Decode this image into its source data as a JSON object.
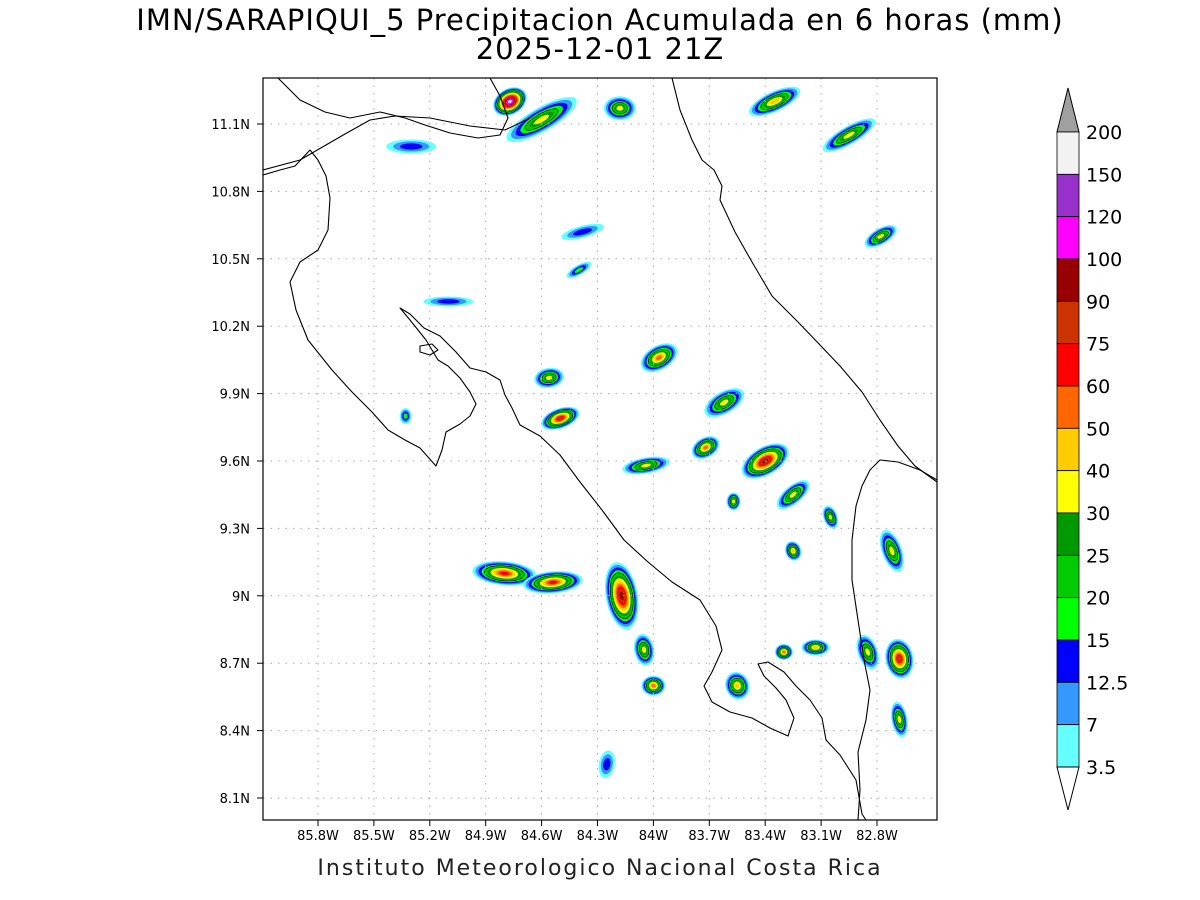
{
  "title_line1": "IMN/SARAPIQUI_5 Precipitacion Acumulada en 6 horas (mm)",
  "title_line2": "2025-12-01 21Z",
  "footer": "Instituto Meteorologico Nacional Costa Rica",
  "lon_labels": [
    "85.8W",
    "85.5W",
    "85.2W",
    "84.9W",
    "84.6W",
    "84.3W",
    "84W",
    "83.7W",
    "83.4W",
    "83.1W",
    "82.8W"
  ],
  "lat_labels": [
    "11.1N",
    "10.8N",
    "10.5N",
    "10.2N",
    "9.9N",
    "9.6N",
    "9.3N",
    "9N",
    "8.7N",
    "8.4N",
    "8.1N"
  ],
  "colorbar": {
    "labels": [
      "200",
      "150",
      "120",
      "100",
      "90",
      "75",
      "60",
      "50",
      "40",
      "30",
      "25",
      "20",
      "15",
      "12.5",
      "7",
      "3.5"
    ],
    "colors": [
      "#f2f2f2",
      "#9932cc",
      "#ff00ff",
      "#990000",
      "#cc3300",
      "#ff0000",
      "#ff6600",
      "#ffcc00",
      "#ffff00",
      "#009900",
      "#00cc00",
      "#00ff00",
      "#0000ff",
      "#3399ff",
      "#66ffff"
    ],
    "over_color": "#a0a0a0",
    "under_color": "#ffffff"
  },
  "rain_cells": [
    {
      "lon": -84.77,
      "lat": 11.2,
      "rx": 18,
      "ry": 13,
      "rot": -30,
      "level": 14
    },
    {
      "lon": -84.6,
      "lat": 11.12,
      "rx": 40,
      "ry": 12,
      "rot": -30,
      "level": 6
    },
    {
      "lon": -84.18,
      "lat": 11.17,
      "rx": 16,
      "ry": 12,
      "rot": 0,
      "level": 6
    },
    {
      "lon": -83.35,
      "lat": 11.2,
      "rx": 28,
      "ry": 10,
      "rot": -25,
      "level": 7
    },
    {
      "lon": -82.95,
      "lat": 11.05,
      "rx": 30,
      "ry": 9,
      "rot": -30,
      "level": 6
    },
    {
      "lon": -82.78,
      "lat": 10.6,
      "rx": 18,
      "ry": 8,
      "rot": -30,
      "level": 6
    },
    {
      "lon": -85.3,
      "lat": 11.0,
      "rx": 25,
      "ry": 7,
      "rot": 0,
      "level": 2
    },
    {
      "lon": -84.38,
      "lat": 10.62,
      "rx": 22,
      "ry": 6,
      "rot": -15,
      "level": 2
    },
    {
      "lon": -83.97,
      "lat": 10.06,
      "rx": 20,
      "ry": 12,
      "rot": -30,
      "level": 8
    },
    {
      "lon": -84.56,
      "lat": 9.97,
      "rx": 15,
      "ry": 10,
      "rot": -10,
      "level": 6
    },
    {
      "lon": -84.5,
      "lat": 9.79,
      "rx": 20,
      "ry": 10,
      "rot": -20,
      "level": 10
    },
    {
      "lon": -83.62,
      "lat": 9.86,
      "rx": 22,
      "ry": 11,
      "rot": -30,
      "level": 6
    },
    {
      "lon": -83.72,
      "lat": 9.66,
      "rx": 15,
      "ry": 10,
      "rot": -30,
      "level": 8
    },
    {
      "lon": -83.4,
      "lat": 9.6,
      "rx": 26,
      "ry": 14,
      "rot": -30,
      "level": 11
    },
    {
      "lon": -84.04,
      "lat": 9.58,
      "rx": 24,
      "ry": 8,
      "rot": -10,
      "level": 6
    },
    {
      "lon": -83.25,
      "lat": 9.45,
      "rx": 20,
      "ry": 9,
      "rot": -40,
      "level": 6
    },
    {
      "lon": -84.8,
      "lat": 9.1,
      "rx": 32,
      "ry": 12,
      "rot": 5,
      "level": 9
    },
    {
      "lon": -84.54,
      "lat": 9.06,
      "rx": 30,
      "ry": 11,
      "rot": -5,
      "level": 9
    },
    {
      "lon": -84.17,
      "lat": 9.0,
      "rx": 16,
      "ry": 34,
      "rot": -10,
      "level": 11
    },
    {
      "lon": -84.05,
      "lat": 8.76,
      "rx": 10,
      "ry": 16,
      "rot": -10,
      "level": 6
    },
    {
      "lon": -84.0,
      "lat": 8.6,
      "rx": 12,
      "ry": 10,
      "rot": 0,
      "level": 8
    },
    {
      "lon": -83.55,
      "lat": 8.6,
      "rx": 12,
      "ry": 14,
      "rot": -20,
      "level": 7
    },
    {
      "lon": -82.85,
      "lat": 8.75,
      "rx": 10,
      "ry": 18,
      "rot": -20,
      "level": 6
    },
    {
      "lon": -82.68,
      "lat": 8.72,
      "rx": 14,
      "ry": 20,
      "rot": -10,
      "level": 10
    },
    {
      "lon": -82.72,
      "lat": 9.2,
      "rx": 10,
      "ry": 22,
      "rot": -20,
      "level": 6
    },
    {
      "lon": -83.13,
      "lat": 8.77,
      "rx": 14,
      "ry": 8,
      "rot": 0,
      "level": 7
    },
    {
      "lon": -83.3,
      "lat": 8.75,
      "rx": 9,
      "ry": 8,
      "rot": 0,
      "level": 8
    },
    {
      "lon": -82.68,
      "lat": 8.45,
      "rx": 8,
      "ry": 18,
      "rot": -10,
      "level": 6
    },
    {
      "lon": -84.25,
      "lat": 8.25,
      "rx": 8,
      "ry": 14,
      "rot": 10,
      "level": 2
    },
    {
      "lon": -83.05,
      "lat": 9.35,
      "rx": 7,
      "ry": 12,
      "rot": -20,
      "level": 6
    },
    {
      "lon": -83.57,
      "lat": 9.42,
      "rx": 7,
      "ry": 9,
      "rot": 0,
      "level": 6
    },
    {
      "lon": -83.25,
      "lat": 9.2,
      "rx": 8,
      "ry": 10,
      "rot": -20,
      "level": 7
    },
    {
      "lon": -84.4,
      "lat": 10.45,
      "rx": 14,
      "ry": 5,
      "rot": -30,
      "level": 3
    },
    {
      "lon": -85.1,
      "lat": 10.31,
      "rx": 25,
      "ry": 5,
      "rot": 0,
      "level": 2
    },
    {
      "lon": -85.33,
      "lat": 9.8,
      "rx": 6,
      "ry": 8,
      "rot": 0,
      "level": 3
    }
  ]
}
